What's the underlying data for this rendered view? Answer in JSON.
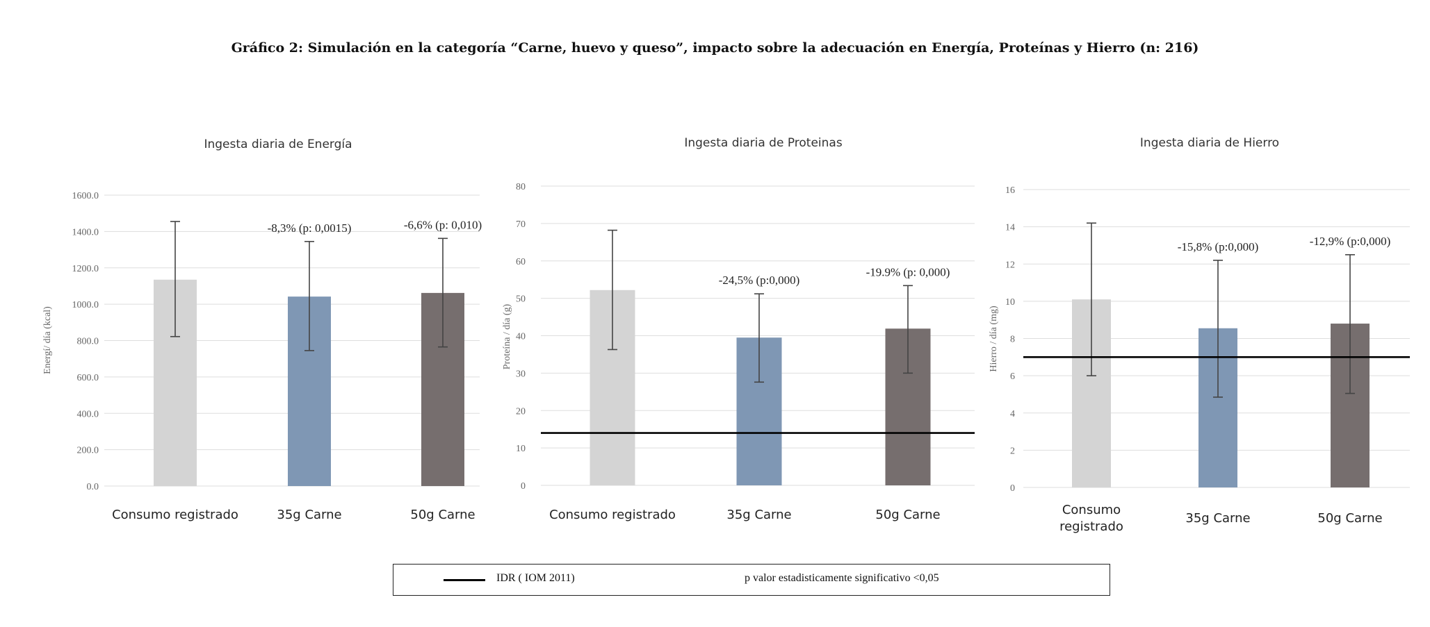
{
  "page": {
    "title": "Gráfico 2: Simulación en la categoría “Carne, huevo y queso”, impacto sobre la adecuación en Energía, Proteínas y Hierro (n: 216)"
  },
  "colors": {
    "consumo_registrado": "#d4d4d4",
    "carne_35g": "#7f97b4",
    "carne_50g": "#766e6e",
    "idr_line": "#000000",
    "grid": "#dddddd",
    "error_bar": "#444444"
  },
  "legend": {
    "idr_label": "IDR ( IOM 2011)",
    "p_note": "p valor estadisticamente significativo <0,05"
  },
  "chart_data": [
    {
      "type": "bar",
      "title": "Ingesta diaria de Energía",
      "ylabel": "Energí/ día (kcal)",
      "categories": [
        "Consumo registrado",
        "35g Carne",
        "50g Carne"
      ],
      "values": [
        1135,
        1042,
        1062
      ],
      "error_high": [
        1455,
        1345,
        1362
      ],
      "error_low": [
        822,
        745,
        765
      ],
      "annotations": [
        "",
        "-8,3% (p: 0,0015)",
        "-6,6% (p: 0,010)"
      ],
      "ylim": [
        0,
        1600
      ],
      "yticks": [
        "0.0",
        "200.0",
        "400.0",
        "600.0",
        "800.0",
        "1000.0",
        "1200.0",
        "1400.0",
        "1600.0"
      ],
      "idr": null,
      "grid": true
    },
    {
      "type": "bar",
      "title": "Ingesta diaria de Proteinas",
      "ylabel": "Proteína / día (g)",
      "categories": [
        "Consumo registrado",
        "35g Carne",
        "50g Carne"
      ],
      "values": [
        52.2,
        39.5,
        41.9
      ],
      "error_high": [
        68.2,
        51.2,
        53.4
      ],
      "error_low": [
        36.3,
        27.6,
        30.0
      ],
      "annotations": [
        "",
        "-24,5% (p:0,000)",
        "-19.9% (p: 0,000)"
      ],
      "ylim": [
        0,
        80
      ],
      "yticks": [
        "0",
        "10",
        "20",
        "30",
        "40",
        "50",
        "60",
        "70",
        "80"
      ],
      "idr": 14,
      "grid": true
    },
    {
      "type": "bar",
      "title": "Ingesta diaria de Hierro",
      "ylabel": "Hierro / día (mg)",
      "categories": [
        "Consumo registrado",
        "35g Carne",
        "50g Carne"
      ],
      "values": [
        10.1,
        8.55,
        8.8
      ],
      "error_high": [
        14.2,
        12.2,
        12.5
      ],
      "error_low": [
        6.0,
        4.85,
        5.05
      ],
      "annotations": [
        "",
        "-15,8% (p:0,000)",
        "-12,9% (p:0,000)"
      ],
      "ylim": [
        0,
        16
      ],
      "yticks": [
        "0",
        "2",
        "4",
        "6",
        "8",
        "10",
        "12",
        "14",
        "16"
      ],
      "idr": 7,
      "grid": true
    }
  ]
}
